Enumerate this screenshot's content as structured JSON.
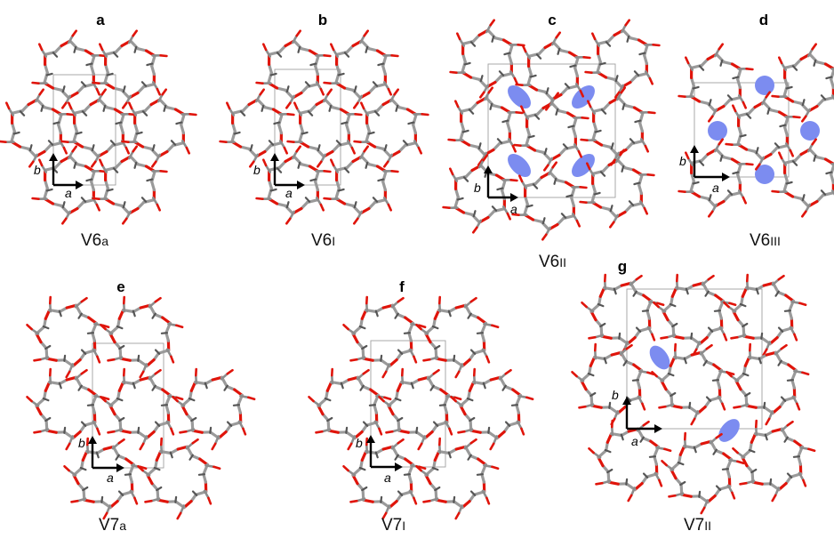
{
  "figure": {
    "panels": [
      {
        "letter": "a",
        "label_main": "V6",
        "label_sub": "a",
        "axis_x": "a",
        "axis_y": "b"
      },
      {
        "letter": "b",
        "label_main": "V6",
        "label_sub": "I",
        "axis_x": "a",
        "axis_y": "b"
      },
      {
        "letter": "c",
        "label_main": "V6",
        "label_sub": "II",
        "axis_x": "a",
        "axis_y": "b"
      },
      {
        "letter": "d",
        "label_main": "V6",
        "label_sub": "III",
        "axis_x": "a",
        "axis_y": "b"
      },
      {
        "letter": "e",
        "label_main": "V7",
        "label_sub": "a",
        "axis_x": "a",
        "axis_y": "b"
      },
      {
        "letter": "f",
        "label_main": "V7",
        "label_sub": "I",
        "axis_x": "a",
        "axis_y": "b"
      },
      {
        "letter": "g",
        "label_main": "V7",
        "label_sub": "II",
        "axis_x": "a",
        "axis_y": "b"
      }
    ],
    "colors": {
      "carbon": "#9a9a9a",
      "oxygen": "#e0140a",
      "void": "#7c8cf0",
      "cell": "#a0a0a0"
    }
  }
}
